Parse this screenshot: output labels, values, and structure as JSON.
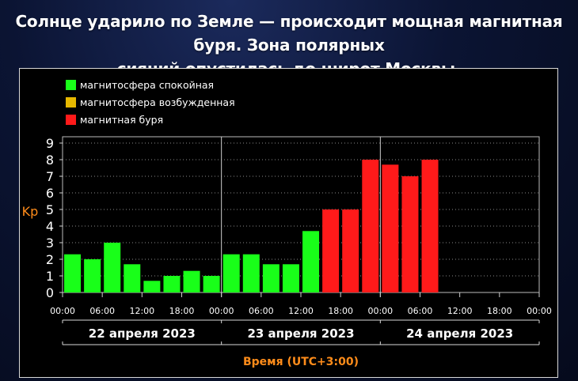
{
  "headline": {
    "line1": "Солнце ударило по Земле — происходит мощная магнитная буря. Зона полярных",
    "line2": "сияний опустилась до широт Москвы."
  },
  "chart_data": {
    "type": "bar",
    "ylabel": "Kp",
    "xlabel": "Время (UTC+3:00)",
    "ylim": [
      0,
      9
    ],
    "yticks": [
      "0",
      "1",
      "2",
      "3",
      "4",
      "5",
      "6",
      "7",
      "8",
      "9"
    ],
    "grid": true,
    "legend": [
      {
        "label": "магнитосфера спокойная",
        "color": "#19ff19"
      },
      {
        "label": "магнитосфера возбужденная",
        "color": "#e6b800"
      },
      {
        "label": "магнитная буря",
        "color": "#ff1a1a"
      }
    ],
    "x_tick_labels": [
      "00:00",
      "06:00",
      "12:00",
      "18:00",
      "00:00",
      "06:00",
      "12:00",
      "18:00",
      "00:00",
      "06:00",
      "12:00",
      "18:00",
      "00:00"
    ],
    "days": [
      "22 апреля 2023",
      "23 апреля 2023",
      "24 апреля 2023"
    ],
    "categories": [
      "22.04 00-03",
      "22.04 03-06",
      "22.04 06-09",
      "22.04 09-12",
      "22.04 12-15",
      "22.04 15-18",
      "22.04 18-21",
      "22.04 21-24",
      "23.04 00-03",
      "23.04 03-06",
      "23.04 06-09",
      "23.04 09-12",
      "23.04 12-15",
      "23.04 15-18",
      "23.04 18-21",
      "23.04 21-24",
      "24.04 00-03",
      "24.04 03-06",
      "24.04 06-09"
    ],
    "values": [
      2.3,
      2.0,
      3.0,
      1.7,
      0.7,
      1.0,
      1.3,
      1.0,
      2.3,
      2.3,
      1.7,
      1.7,
      3.7,
      5.0,
      5.0,
      8.0,
      7.7,
      7.0,
      8.0
    ],
    "status": [
      "quiet",
      "quiet",
      "quiet",
      "quiet",
      "quiet",
      "quiet",
      "quiet",
      "quiet",
      "quiet",
      "quiet",
      "quiet",
      "quiet",
      "quiet",
      "storm",
      "storm",
      "storm",
      "storm",
      "storm",
      "storm"
    ],
    "colors": {
      "quiet": "#19ff19",
      "active": "#e6b800",
      "storm": "#ff1a1a"
    }
  }
}
